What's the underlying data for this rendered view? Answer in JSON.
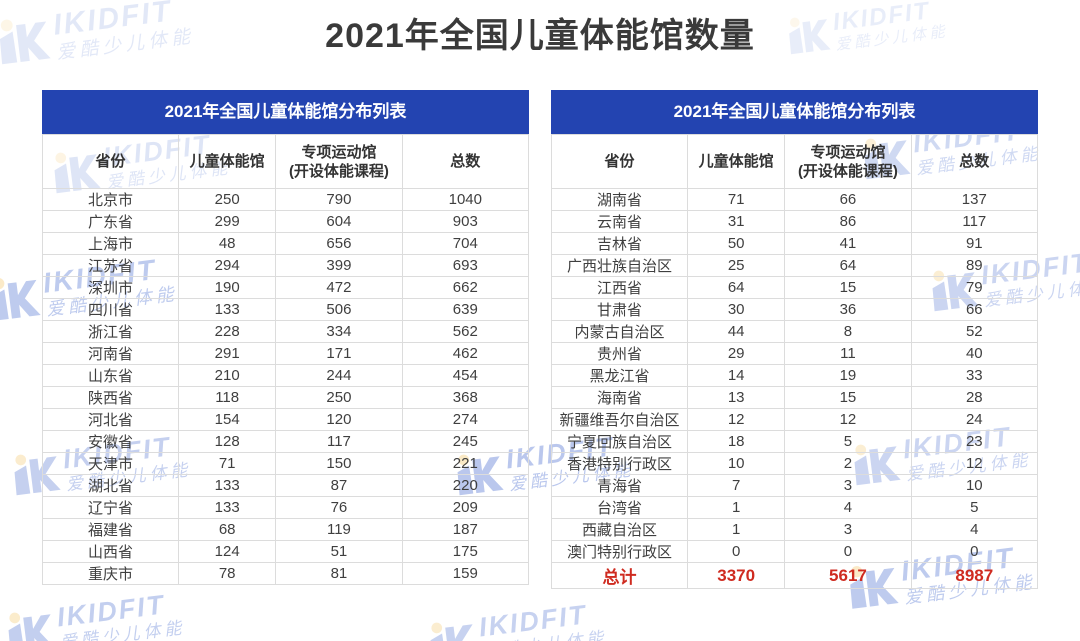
{
  "page_title": "2021年全国儿童体能馆数量",
  "brand": {
    "name": "IKIDFIT",
    "tagline": "爱酷少儿体能"
  },
  "colors": {
    "banner_blue": "#2344b1",
    "total_red": "#cf2b20",
    "title_gray": "#3a3a3a",
    "watermark_blue": "#2b55c8",
    "watermark_yellow": "#f2bc4d"
  },
  "tables": {
    "title": "2021年全国儿童体能馆分布列表",
    "columns": [
      "省份",
      "儿童体能馆",
      "专项运动馆",
      "(开设体能课程)",
      "总数"
    ],
    "left_rows": [
      [
        "北京市",
        "250",
        "790",
        "1040"
      ],
      [
        "广东省",
        "299",
        "604",
        "903"
      ],
      [
        "上海市",
        "48",
        "656",
        "704"
      ],
      [
        "江苏省",
        "294",
        "399",
        "693"
      ],
      [
        "深圳市",
        "190",
        "472",
        "662"
      ],
      [
        "四川省",
        "133",
        "506",
        "639"
      ],
      [
        "浙江省",
        "228",
        "334",
        "562"
      ],
      [
        "河南省",
        "291",
        "171",
        "462"
      ],
      [
        "山东省",
        "210",
        "244",
        "454"
      ],
      [
        "陕西省",
        "118",
        "250",
        "368"
      ],
      [
        "河北省",
        "154",
        "120",
        "274"
      ],
      [
        "安徽省",
        "128",
        "117",
        "245"
      ],
      [
        "天津市",
        "71",
        "150",
        "221"
      ],
      [
        "湖北省",
        "133",
        "87",
        "220"
      ],
      [
        "辽宁省",
        "133",
        "76",
        "209"
      ],
      [
        "福建省",
        "68",
        "119",
        "187"
      ],
      [
        "山西省",
        "124",
        "51",
        "175"
      ],
      [
        "重庆市",
        "78",
        "81",
        "159"
      ]
    ],
    "right_rows": [
      [
        "湖南省",
        "71",
        "66",
        "137"
      ],
      [
        "云南省",
        "31",
        "86",
        "117"
      ],
      [
        "吉林省",
        "50",
        "41",
        "91"
      ],
      [
        "广西壮族自治区",
        "25",
        "64",
        "89"
      ],
      [
        "江西省",
        "64",
        "15",
        "79"
      ],
      [
        "甘肃省",
        "30",
        "36",
        "66"
      ],
      [
        "内蒙古自治区",
        "44",
        "8",
        "52"
      ],
      [
        "贵州省",
        "29",
        "11",
        "40"
      ],
      [
        "黑龙江省",
        "14",
        "19",
        "33"
      ],
      [
        "海南省",
        "13",
        "15",
        "28"
      ],
      [
        "新疆维吾尔自治区",
        "12",
        "12",
        "24"
      ],
      [
        "宁夏回族自治区",
        "18",
        "5",
        "23"
      ],
      [
        "香港特别行政区",
        "10",
        "2",
        "12"
      ],
      [
        "青海省",
        "7",
        "3",
        "10"
      ],
      [
        "台湾省",
        "1",
        "4",
        "5"
      ],
      [
        "西藏自治区",
        "1",
        "3",
        "4"
      ],
      [
        "澳门特别行政区",
        "0",
        "0",
        "0"
      ]
    ],
    "total_row": [
      "总计",
      "3370",
      "5617",
      "8987"
    ]
  }
}
